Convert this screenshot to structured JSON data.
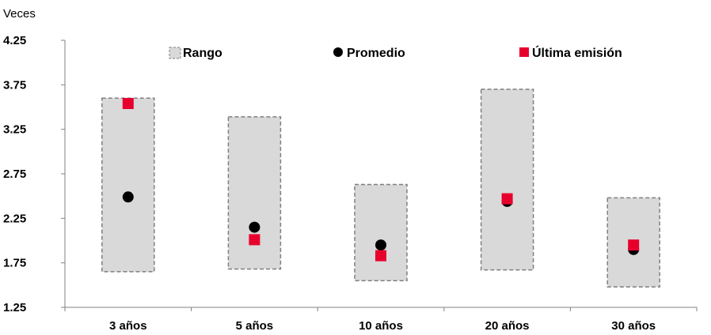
{
  "chart_data": {
    "type": "scatter",
    "ylabel": "Veces",
    "ylim": [
      1.25,
      4.25
    ],
    "yticks": [
      "1.25",
      "1.75",
      "2.25",
      "2.75",
      "3.25",
      "3.75",
      "4.25"
    ],
    "categories": [
      "3 años",
      "5 años",
      "10 años",
      "20 años",
      "30 años"
    ],
    "legend": [
      "Rango",
      "Promedio",
      "Última emisión"
    ],
    "legend_position": "top",
    "grid": false,
    "series": [
      {
        "name": "Rango",
        "kind": "range",
        "color": "#d9d9d9",
        "border": "#7f7f7f",
        "min": [
          1.65,
          1.68,
          1.55,
          1.67,
          1.48
        ],
        "max": [
          3.6,
          3.39,
          2.63,
          3.7,
          2.48
        ]
      },
      {
        "name": "Promedio",
        "kind": "point",
        "color": "#000000",
        "values": [
          2.49,
          2.15,
          1.95,
          2.44,
          1.9
        ]
      },
      {
        "name": "Última emisión",
        "kind": "square",
        "color": "#e8002d",
        "values": [
          3.54,
          2.01,
          1.83,
          2.47,
          1.95
        ]
      }
    ]
  }
}
